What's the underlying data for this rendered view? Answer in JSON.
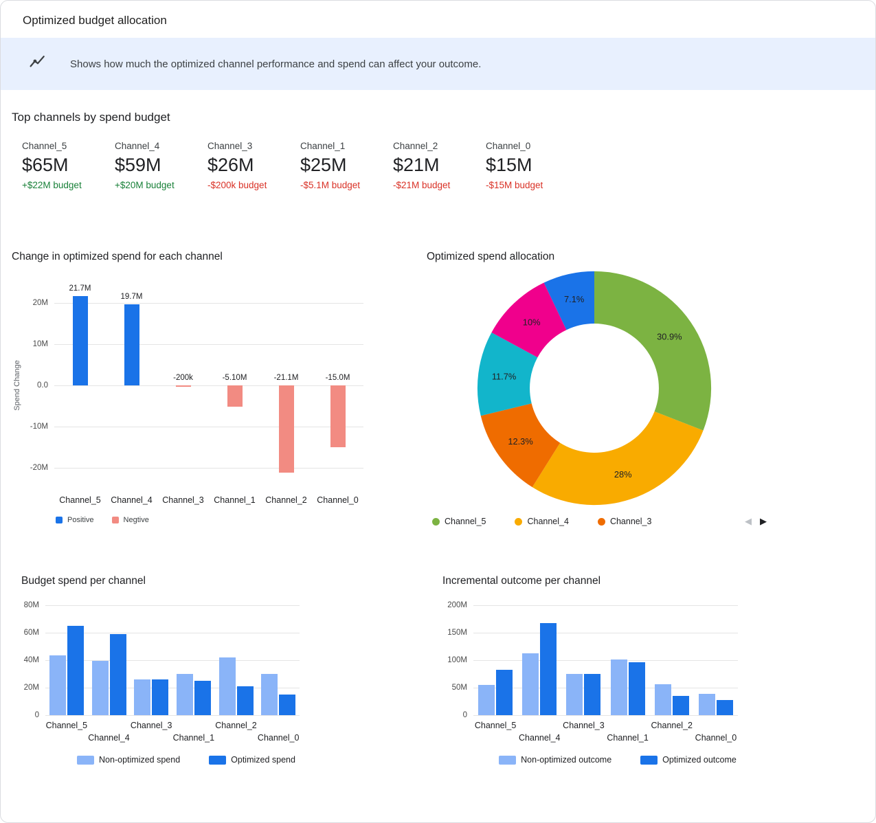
{
  "window": {
    "title": "Optimized budget allocation"
  },
  "banner": {
    "icon": "insights-icon",
    "text": "Shows how much the optimized channel performance and spend can affect your outcome."
  },
  "top_channels": {
    "title": "Top channels by spend budget",
    "cards": [
      {
        "name": "Channel_5",
        "spend": "$65M",
        "delta": "+$22M budget",
        "direction": "up"
      },
      {
        "name": "Channel_4",
        "spend": "$59M",
        "delta": "+$20M budget",
        "direction": "up"
      },
      {
        "name": "Channel_3",
        "spend": "$26M",
        "delta": "-$200k budget",
        "direction": "down"
      },
      {
        "name": "Channel_1",
        "spend": "$25M",
        "delta": "-$5.1M budget",
        "direction": "down"
      },
      {
        "name": "Channel_2",
        "spend": "$21M",
        "delta": "-$21M budget",
        "direction": "down"
      },
      {
        "name": "Channel_0",
        "spend": "$15M",
        "delta": "-$15M budget",
        "direction": "down"
      }
    ]
  },
  "colors": {
    "positive_blue": "#1a73e8",
    "negative_salmon": "#f28b82",
    "light_blue": "#8ab4f8",
    "dark_blue": "#1a73e8",
    "banner_bg": "#e8f0fe",
    "gain_green": "#188038",
    "loss_red": "#d93025"
  },
  "chart_data": [
    {
      "id": "spend_change",
      "type": "bar",
      "title": "Change in optimized spend for each channel",
      "ylabel": "Spend Change",
      "categories": [
        "Channel_5",
        "Channel_4",
        "Channel_3",
        "Channel_1",
        "Channel_2",
        "Channel_0"
      ],
      "values": [
        21.7,
        19.7,
        -0.2,
        -5.1,
        -21.1,
        -15.0
      ],
      "value_labels": [
        "21.7M",
        "19.7M",
        "-200k",
        "-5.10M",
        "-21.1M",
        "-15.0M"
      ],
      "unit": "M",
      "ylim": [
        -25,
        25
      ],
      "yticks": [
        {
          "v": 20,
          "label": "20M"
        },
        {
          "v": 10,
          "label": "10M"
        },
        {
          "v": 0,
          "label": "0.0"
        },
        {
          "v": -10,
          "label": "-10M"
        },
        {
          "v": -20,
          "label": "-20M"
        }
      ],
      "positive_color": "#1a73e8",
      "negative_color": "#f28b82",
      "legend": [
        {
          "label": "Positive",
          "color": "#1a73e8"
        },
        {
          "label": "Negtive",
          "color": "#f28b82"
        }
      ]
    },
    {
      "id": "spend_allocation",
      "type": "pie",
      "title": "Optimized spend allocation",
      "slices": [
        {
          "legend_label": "Channel_5",
          "pct": 30.9,
          "display": "30.9%",
          "color": "#7cb342"
        },
        {
          "legend_label": "Channel_4",
          "pct": 28,
          "display": "28%",
          "color": "#f9ab00"
        },
        {
          "legend_label": "Channel_3",
          "pct": 12.3,
          "display": "12.3%",
          "color": "#ef6c00"
        },
        {
          "pct": 11.7,
          "display": "11.7%",
          "color": "#12b5cb"
        },
        {
          "pct": 10,
          "display": "10%",
          "color": "#f0008c"
        },
        {
          "pct": 7.1,
          "display": "7.1%",
          "color": "#1a73e8"
        }
      ],
      "pager": {
        "prev": "◀",
        "next": "▶"
      }
    },
    {
      "id": "budget_spend",
      "type": "bar",
      "title": "Budget spend per channel",
      "categories": [
        "Channel_5",
        "Channel_4",
        "Channel_3",
        "Channel_1",
        "Channel_2",
        "Channel_0"
      ],
      "series": [
        {
          "name": "Non-optimized spend",
          "color": "#8ab4f8",
          "values": [
            43.3,
            39.3,
            26.2,
            30.1,
            42.1,
            30.0
          ]
        },
        {
          "name": "Optimized spend",
          "color": "#1a73e8",
          "values": [
            65,
            59,
            26,
            25,
            21,
            15
          ]
        }
      ],
      "unit": "M",
      "ylim": [
        0,
        80
      ],
      "yticks": [
        {
          "v": 0,
          "label": "0"
        },
        {
          "v": 20,
          "label": "20M"
        },
        {
          "v": 40,
          "label": "40M"
        },
        {
          "v": 60,
          "label": "60M"
        },
        {
          "v": 80,
          "label": "80M"
        }
      ]
    },
    {
      "id": "incremental_outcome",
      "type": "bar",
      "title": "Incremental outcome per channel",
      "categories": [
        "Channel_5",
        "Channel_4",
        "Channel_3",
        "Channel_1",
        "Channel_2",
        "Channel_0"
      ],
      "series": [
        {
          "name": "Non-optimized outcome",
          "color": "#8ab4f8",
          "values": [
            55,
            112,
            75,
            101,
            56,
            39
          ]
        },
        {
          "name": "Optimized outcome",
          "color": "#1a73e8",
          "values": [
            83,
            167,
            75,
            96,
            35,
            27
          ]
        }
      ],
      "unit": "M",
      "ylim": [
        0,
        200
      ],
      "yticks": [
        {
          "v": 0,
          "label": "0"
        },
        {
          "v": 50,
          "label": "50M"
        },
        {
          "v": 100,
          "label": "100M"
        },
        {
          "v": 150,
          "label": "150M"
        },
        {
          "v": 200,
          "label": "200M"
        }
      ]
    }
  ]
}
